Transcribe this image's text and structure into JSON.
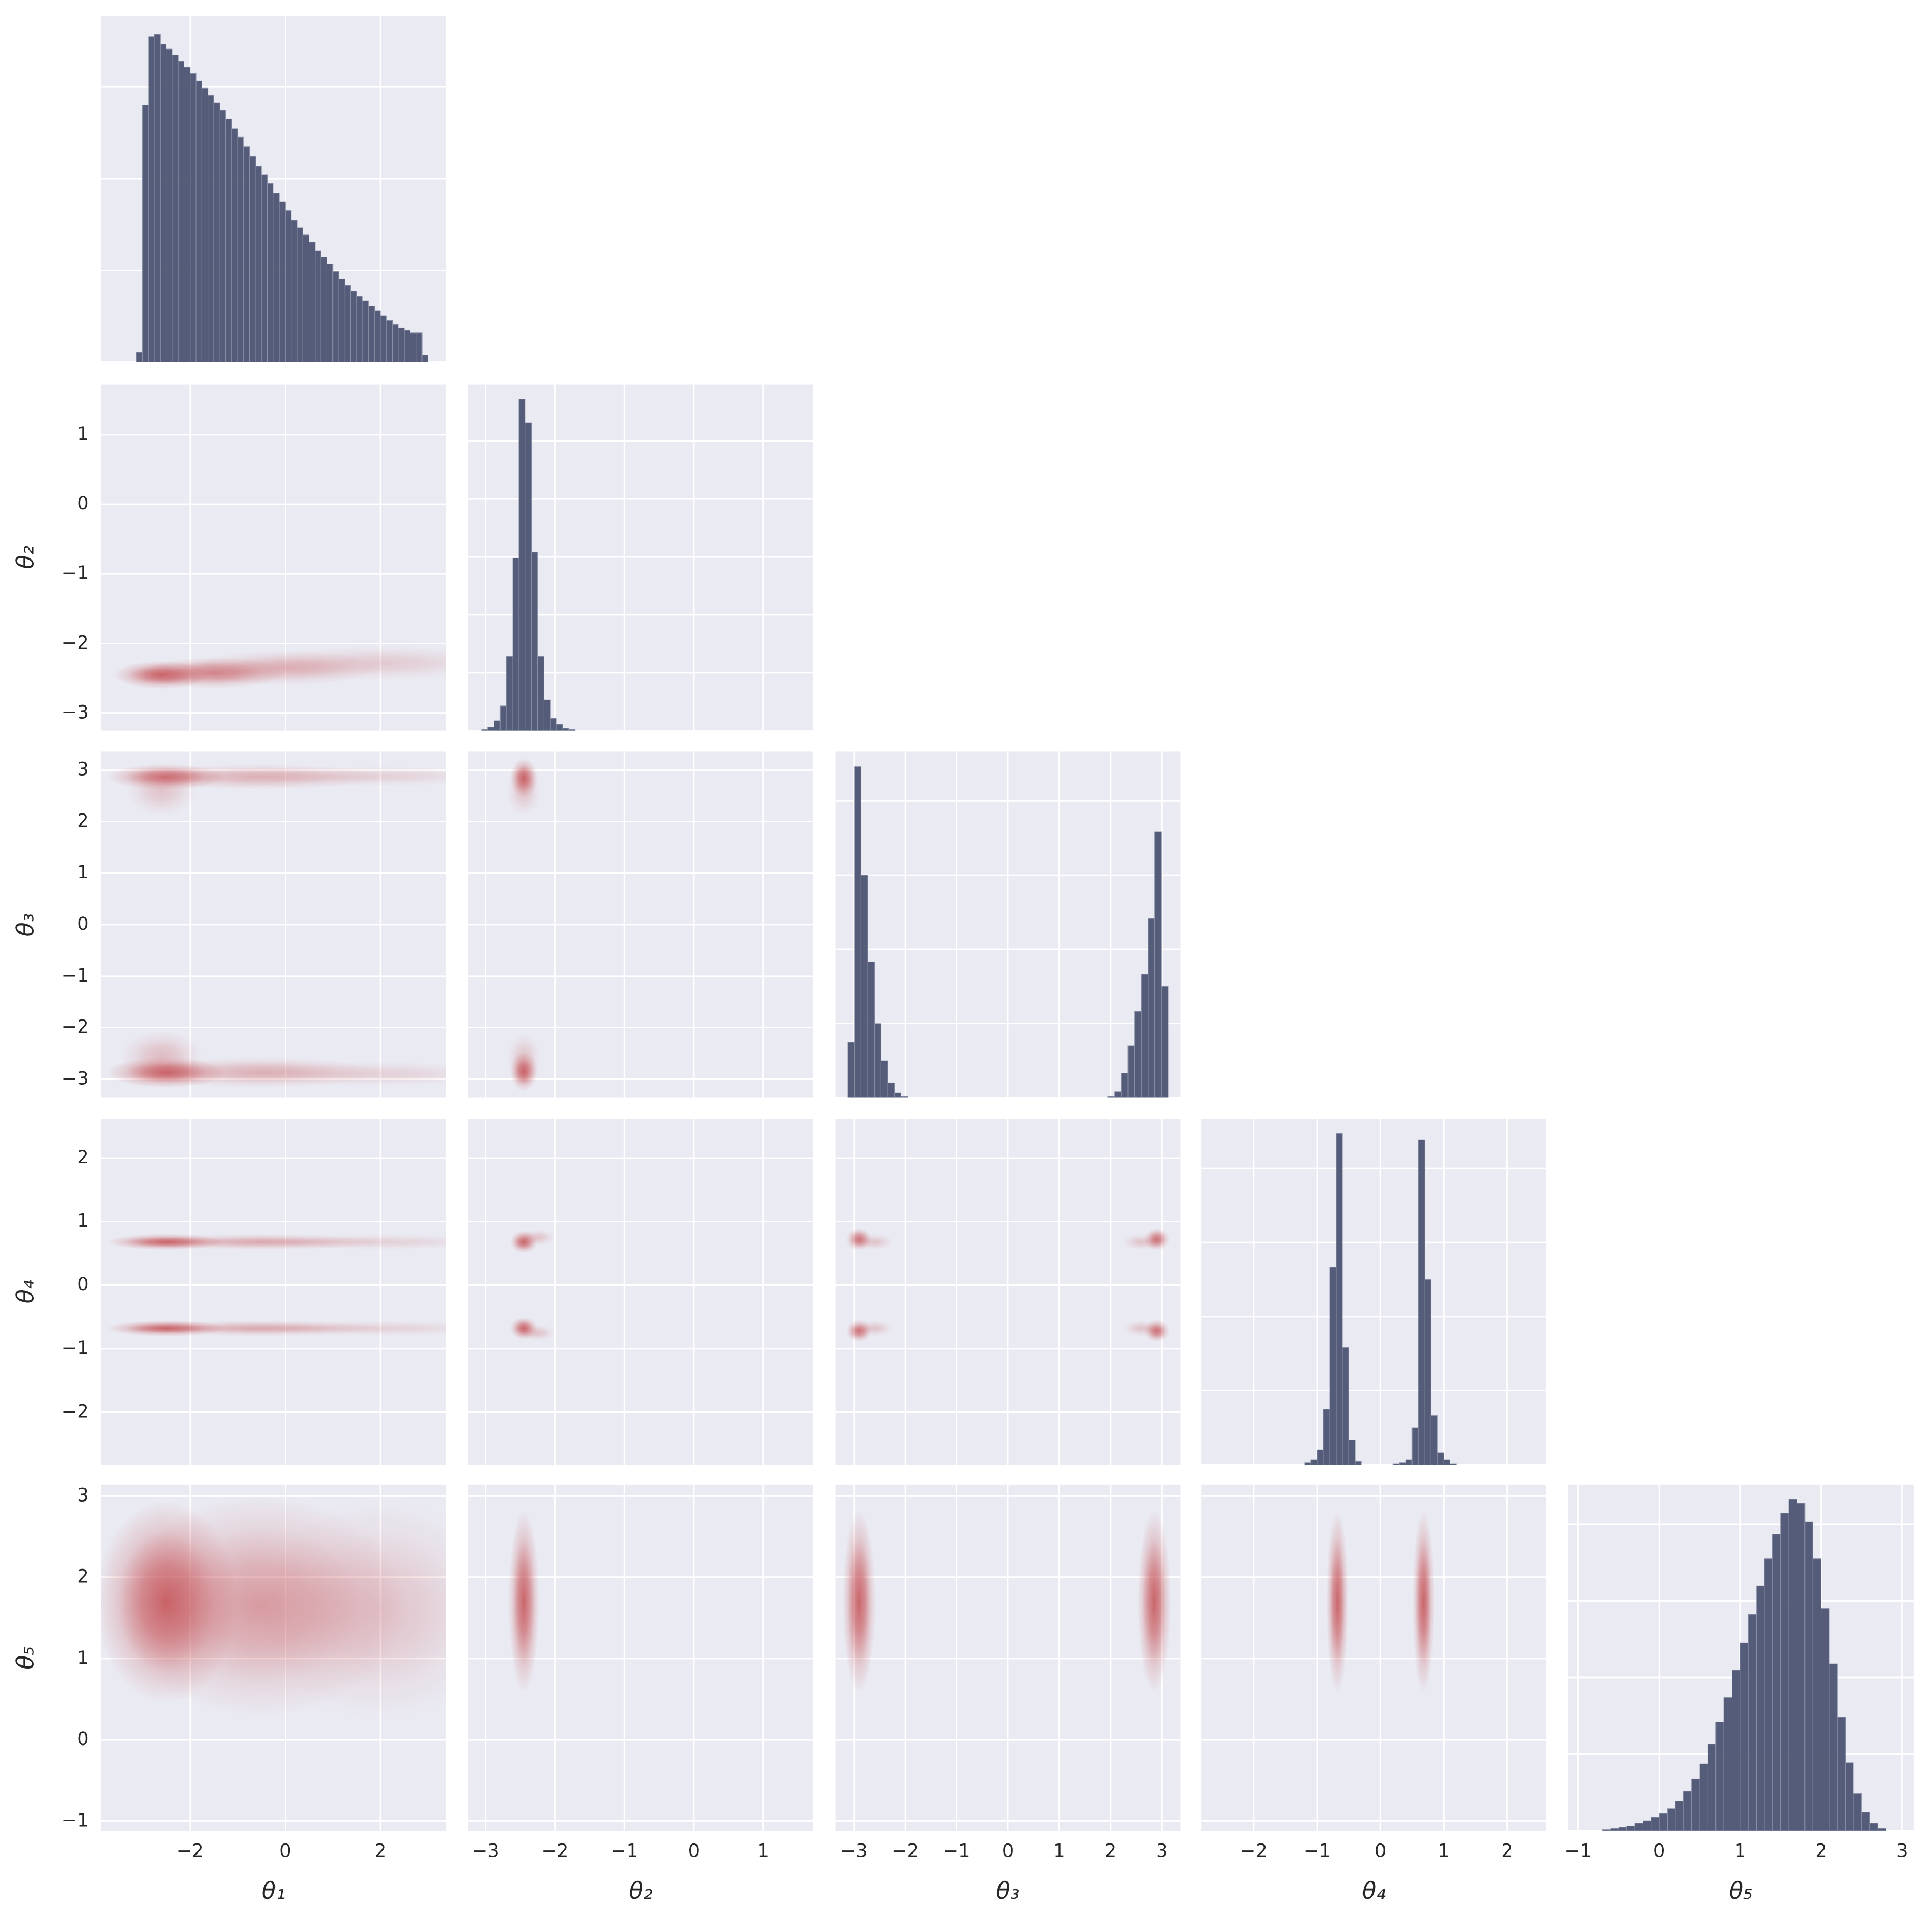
{
  "params": [
    {
      "label": "θ₁",
      "lim": [
        -3.87,
        3.38
      ],
      "ticks": [
        {
          "value": -2,
          "label": "−2"
        },
        0,
        2
      ]
    },
    {
      "label": "θ₂",
      "lim": [
        -3.25,
        1.72
      ],
      "ticks": [
        {
          "value": -3,
          "label": "−3"
        },
        {
          "value": -2,
          "label": "−2"
        },
        {
          "value": -1,
          "label": "−1"
        },
        0,
        1
      ]
    },
    {
      "label": "θ₃",
      "lim": [
        -3.36,
        3.36
      ],
      "ticks": [
        {
          "value": -3,
          "label": "−3"
        },
        {
          "value": -2,
          "label": "−2"
        },
        {
          "value": -1,
          "label": "−1"
        },
        0,
        1,
        2,
        3
      ]
    },
    {
      "label": "θ₄",
      "lim": [
        -2.83,
        2.62
      ],
      "ticks": [
        {
          "value": -2,
          "label": "−2"
        },
        {
          "value": -1,
          "label": "−1"
        },
        0,
        1,
        2
      ]
    },
    {
      "label": "θ₅",
      "lim": [
        -1.12,
        3.14
      ],
      "ticks": [
        {
          "value": -1,
          "label": "−1"
        },
        0,
        1,
        2,
        3
      ]
    }
  ],
  "chart_data": [
    {
      "type": "histogram",
      "color": "#4c5472",
      "ylim": [
        0,
        1887
      ],
      "ygrid": [
        0,
        500,
        1000,
        1500
      ],
      "bins": [
        -3.125,
        -3,
        -2.875,
        -2.75,
        -2.625,
        -2.5,
        -2.375,
        -2.25,
        -2.125,
        -2,
        -1.875,
        -1.75,
        -1.625,
        -1.5,
        -1.375,
        -1.25,
        -1.125,
        -1,
        -0.875,
        -0.75,
        -0.625,
        -0.5,
        -0.375,
        -0.25,
        -0.125,
        0,
        0.125,
        0.25,
        0.375,
        0.5,
        0.625,
        0.75,
        0.875,
        1,
        1.125,
        1.25,
        1.375,
        1.5,
        1.625,
        1.75,
        1.875,
        2,
        2.125,
        2.25,
        2.375,
        2.5,
        2.625,
        2.75,
        2.875,
        3
      ],
      "counts": [
        53,
        1401,
        1774,
        1787,
        1734,
        1707,
        1674,
        1641,
        1607,
        1574,
        1534,
        1494,
        1454,
        1414,
        1374,
        1327,
        1274,
        1227,
        1174,
        1121,
        1067,
        1021,
        974,
        921,
        874,
        827,
        774,
        734,
        694,
        654,
        607,
        574,
        534,
        494,
        454,
        420,
        387,
        360,
        334,
        307,
        280,
        254,
        227,
        207,
        187,
        174,
        160,
        160,
        40
      ]
    },
    {
      "type": "hexbin",
      "color": "#c44e52",
      "blobs": [
        {
          "x": -2.6,
          "y": -2.45,
          "sx": 0.4,
          "sy": 0.08,
          "w": 1
        },
        {
          "x": -1.5,
          "y": -2.42,
          "sx": 0.6,
          "sy": 0.09,
          "w": 0.75
        },
        {
          "x": 0,
          "y": -2.35,
          "sx": 0.8,
          "sy": 0.1,
          "w": 0.45
        },
        {
          "x": 2,
          "y": -2.28,
          "sx": 1,
          "sy": 0.1,
          "w": 0.25
        }
      ]
    },
    {
      "type": "histogram",
      "color": "#4c5472",
      "ylim": [
        0,
        5980
      ],
      "ygrid": [
        0,
        1000,
        2000,
        3000,
        4000,
        5000
      ],
      "bins": [
        -3.06,
        -2.97,
        -2.88,
        -2.79,
        -2.7,
        -2.61,
        -2.52,
        -2.43,
        -2.34,
        -2.25,
        -2.16,
        -2.07,
        -1.98,
        -1.89,
        -1.8,
        -1.71
      ],
      "counts": [
        21,
        64,
        170,
        426,
        1277,
        2979,
        5724,
        5320,
        3085,
        1277,
        532,
        213,
        106,
        43,
        21
      ]
    },
    {
      "type": "hexbin",
      "color": "#c44e52",
      "blobs": [
        {
          "x": -2.5,
          "y": 2.87,
          "sx": 0.5,
          "sy": 0.1,
          "w": 0.9
        },
        {
          "x": -0.5,
          "y": 2.87,
          "sx": 1,
          "sy": 0.1,
          "w": 0.45
        },
        {
          "x": 2,
          "y": 2.88,
          "sx": 1,
          "sy": 0.08,
          "w": 0.2
        },
        {
          "x": -2.6,
          "y": 2.6,
          "sx": 0.3,
          "sy": 0.2,
          "w": 0.3
        },
        {
          "x": -2.5,
          "y": -2.87,
          "sx": 0.5,
          "sy": 0.12,
          "w": 1
        },
        {
          "x": -0.5,
          "y": -2.87,
          "sx": 1,
          "sy": 0.12,
          "w": 0.45
        },
        {
          "x": 2,
          "y": -2.9,
          "sx": 1,
          "sy": 0.1,
          "w": 0.2
        },
        {
          "x": -2.6,
          "y": -2.55,
          "sx": 0.35,
          "sy": 0.2,
          "w": 0.35
        }
      ]
    },
    {
      "type": "hexbin",
      "color": "#c44e52",
      "blobs": [
        {
          "x": -2.45,
          "y": 2.85,
          "sx": 0.08,
          "sy": 0.15,
          "w": 1
        },
        {
          "x": -2.45,
          "y": 2.6,
          "sx": 0.1,
          "sy": 0.2,
          "w": 0.3
        },
        {
          "x": -2.45,
          "y": -2.85,
          "sx": 0.08,
          "sy": 0.15,
          "w": 1
        },
        {
          "x": -2.45,
          "y": -2.6,
          "sx": 0.1,
          "sy": 0.2,
          "w": 0.3
        }
      ]
    },
    {
      "type": "histogram",
      "color": "#4c5472",
      "ylim": [
        0,
        2800
      ],
      "ygrid": [
        0,
        600,
        1200,
        1800,
        2400
      ],
      "bins": [
        -3.12,
        -2.99,
        -2.86,
        -2.73,
        -2.6,
        -2.47,
        -2.34,
        -2.21,
        -2.08,
        -1.95,
        -1.82,
        -1.69,
        -1.56,
        -1.43,
        -1.3,
        -1.17,
        -1.04,
        -0.91,
        -0.78,
        -0.65,
        -0.52,
        -0.39,
        -0.26,
        -0.13,
        0,
        0.13,
        0.26,
        0.39,
        0.52,
        0.65,
        0.78,
        0.91,
        1.04,
        1.17,
        1.3,
        1.43,
        1.56,
        1.69,
        1.82,
        1.95,
        2.08,
        2.21,
        2.34,
        2.47,
        2.6,
        2.73,
        2.86,
        2.99,
        3.12
      ],
      "counts": [
        450,
        2680,
        1800,
        1100,
        600,
        300,
        120,
        40,
        10,
        0,
        0,
        0,
        0,
        0,
        0,
        0,
        0,
        0,
        0,
        0,
        0,
        0,
        0,
        0,
        0,
        0,
        0,
        0,
        0,
        0,
        0,
        0,
        0,
        0,
        0,
        0,
        0,
        0,
        0,
        10,
        50,
        200,
        420,
        700,
        1000,
        1450,
        2150,
        900
      ]
    },
    {
      "type": "hexbin",
      "color": "#c44e52",
      "blobs": [
        {
          "x": -2.5,
          "y": 0.68,
          "sx": 0.5,
          "sy": 0.05,
          "w": 1
        },
        {
          "x": -0.5,
          "y": 0.68,
          "sx": 1,
          "sy": 0.05,
          "w": 0.5
        },
        {
          "x": 2,
          "y": 0.68,
          "sx": 1,
          "sy": 0.05,
          "w": 0.2
        },
        {
          "x": -2.5,
          "y": -0.68,
          "sx": 0.5,
          "sy": 0.05,
          "w": 1
        },
        {
          "x": -0.5,
          "y": -0.68,
          "sx": 1,
          "sy": 0.05,
          "w": 0.5
        },
        {
          "x": 2,
          "y": -0.68,
          "sx": 1,
          "sy": 0.05,
          "w": 0.2
        }
      ]
    },
    {
      "type": "hexbin",
      "color": "#c44e52",
      "blobs": [
        {
          "x": -2.45,
          "y": 0.68,
          "sx": 0.08,
          "sy": 0.07,
          "w": 1
        },
        {
          "x": -2.25,
          "y": 0.75,
          "sx": 0.1,
          "sy": 0.05,
          "w": 0.3
        },
        {
          "x": -2.45,
          "y": -0.68,
          "sx": 0.08,
          "sy": 0.07,
          "w": 1
        },
        {
          "x": -2.25,
          "y": -0.75,
          "sx": 0.1,
          "sy": 0.05,
          "w": 0.3
        }
      ]
    },
    {
      "type": "hexbin",
      "color": "#c44e52",
      "blobs": [
        {
          "x": -2.9,
          "y": 0.72,
          "sx": 0.1,
          "sy": 0.07,
          "w": 0.9
        },
        {
          "x": -2.6,
          "y": 0.68,
          "sx": 0.15,
          "sy": 0.05,
          "w": 0.3
        },
        {
          "x": -2.9,
          "y": -0.72,
          "sx": 0.1,
          "sy": 0.07,
          "w": 0.9
        },
        {
          "x": -2.6,
          "y": -0.68,
          "sx": 0.15,
          "sy": 0.05,
          "w": 0.3
        },
        {
          "x": 2.9,
          "y": 0.72,
          "sx": 0.1,
          "sy": 0.07,
          "w": 0.9
        },
        {
          "x": 2.6,
          "y": 0.68,
          "sx": 0.15,
          "sy": 0.05,
          "w": 0.3
        },
        {
          "x": 2.9,
          "y": -0.72,
          "sx": 0.1,
          "sy": 0.07,
          "w": 0.9
        },
        {
          "x": 2.6,
          "y": -0.68,
          "sx": 0.15,
          "sy": 0.05,
          "w": 0.3
        }
      ]
    },
    {
      "type": "histogram",
      "color": "#4c5472",
      "ylim": [
        0,
        2800
      ],
      "ygrid": [
        0,
        600,
        1200,
        1800,
        2400
      ],
      "bins": [
        -1.2,
        -1.1,
        -1,
        -0.9,
        -0.8,
        -0.7,
        -0.6,
        -0.5,
        -0.4,
        -0.3,
        -0.2,
        -0.1,
        0,
        0.1,
        0.2,
        0.3,
        0.4,
        0.5,
        0.6,
        0.7,
        0.8,
        0.9,
        1,
        1.1,
        1.2
      ],
      "counts": [
        20,
        40,
        120,
        450,
        1600,
        2680,
        950,
        200,
        30,
        0,
        0,
        0,
        0,
        0,
        10,
        20,
        40,
        300,
        2630,
        1500,
        400,
        100,
        40,
        10
      ]
    },
    {
      "type": "hexbin",
      "color": "#c44e52",
      "blobs": [
        {
          "x": -2.5,
          "y": 1.7,
          "sx": 0.6,
          "sy": 0.5,
          "w": 1
        },
        {
          "x": -0.5,
          "y": 1.65,
          "sx": 1.2,
          "sy": 0.55,
          "w": 0.6
        },
        {
          "x": 2,
          "y": 1.6,
          "sx": 1,
          "sy": 0.55,
          "w": 0.3
        }
      ]
    },
    {
      "type": "hexbin",
      "color": "#c44e52",
      "blobs": [
        {
          "x": -2.45,
          "y": 1.7,
          "sx": 0.09,
          "sy": 0.45,
          "w": 1
        }
      ]
    },
    {
      "type": "hexbin",
      "color": "#c44e52",
      "blobs": [
        {
          "x": -2.9,
          "y": 1.7,
          "sx": 0.13,
          "sy": 0.45,
          "w": 1
        },
        {
          "x": 2.85,
          "y": 1.7,
          "sx": 0.13,
          "sy": 0.45,
          "w": 1
        }
      ]
    },
    {
      "type": "hexbin",
      "color": "#c44e52",
      "blobs": [
        {
          "x": -0.68,
          "y": 1.7,
          "sx": 0.07,
          "sy": 0.45,
          "w": 1
        },
        {
          "x": 0.68,
          "y": 1.7,
          "sx": 0.07,
          "sy": 0.45,
          "w": 1
        }
      ]
    },
    {
      "type": "histogram",
      "color": "#4c5472",
      "ylim": [
        0,
        2800
      ],
      "ygrid": [
        0,
        620,
        1240,
        1860,
        2480
      ],
      "bins": [
        -0.7,
        -0.6,
        -0.5,
        -0.4,
        -0.3,
        -0.2,
        -0.1,
        0,
        0.1,
        0.2,
        0.3,
        0.4,
        0.5,
        0.6,
        0.7,
        0.8,
        0.9,
        1,
        1.1,
        1.2,
        1.3,
        1.4,
        1.5,
        1.6,
        1.7,
        1.8,
        1.9,
        2,
        2.1,
        2.2,
        2.3,
        2.4,
        2.5,
        2.6,
        2.7,
        2.8
      ],
      "counts": [
        10,
        20,
        30,
        40,
        60,
        80,
        110,
        140,
        180,
        240,
        320,
        420,
        540,
        700,
        880,
        1080,
        1300,
        1520,
        1750,
        1980,
        2200,
        2400,
        2570,
        2680,
        2650,
        2500,
        2200,
        1800,
        1350,
        920,
        550,
        300,
        150,
        60,
        20
      ]
    }
  ]
}
